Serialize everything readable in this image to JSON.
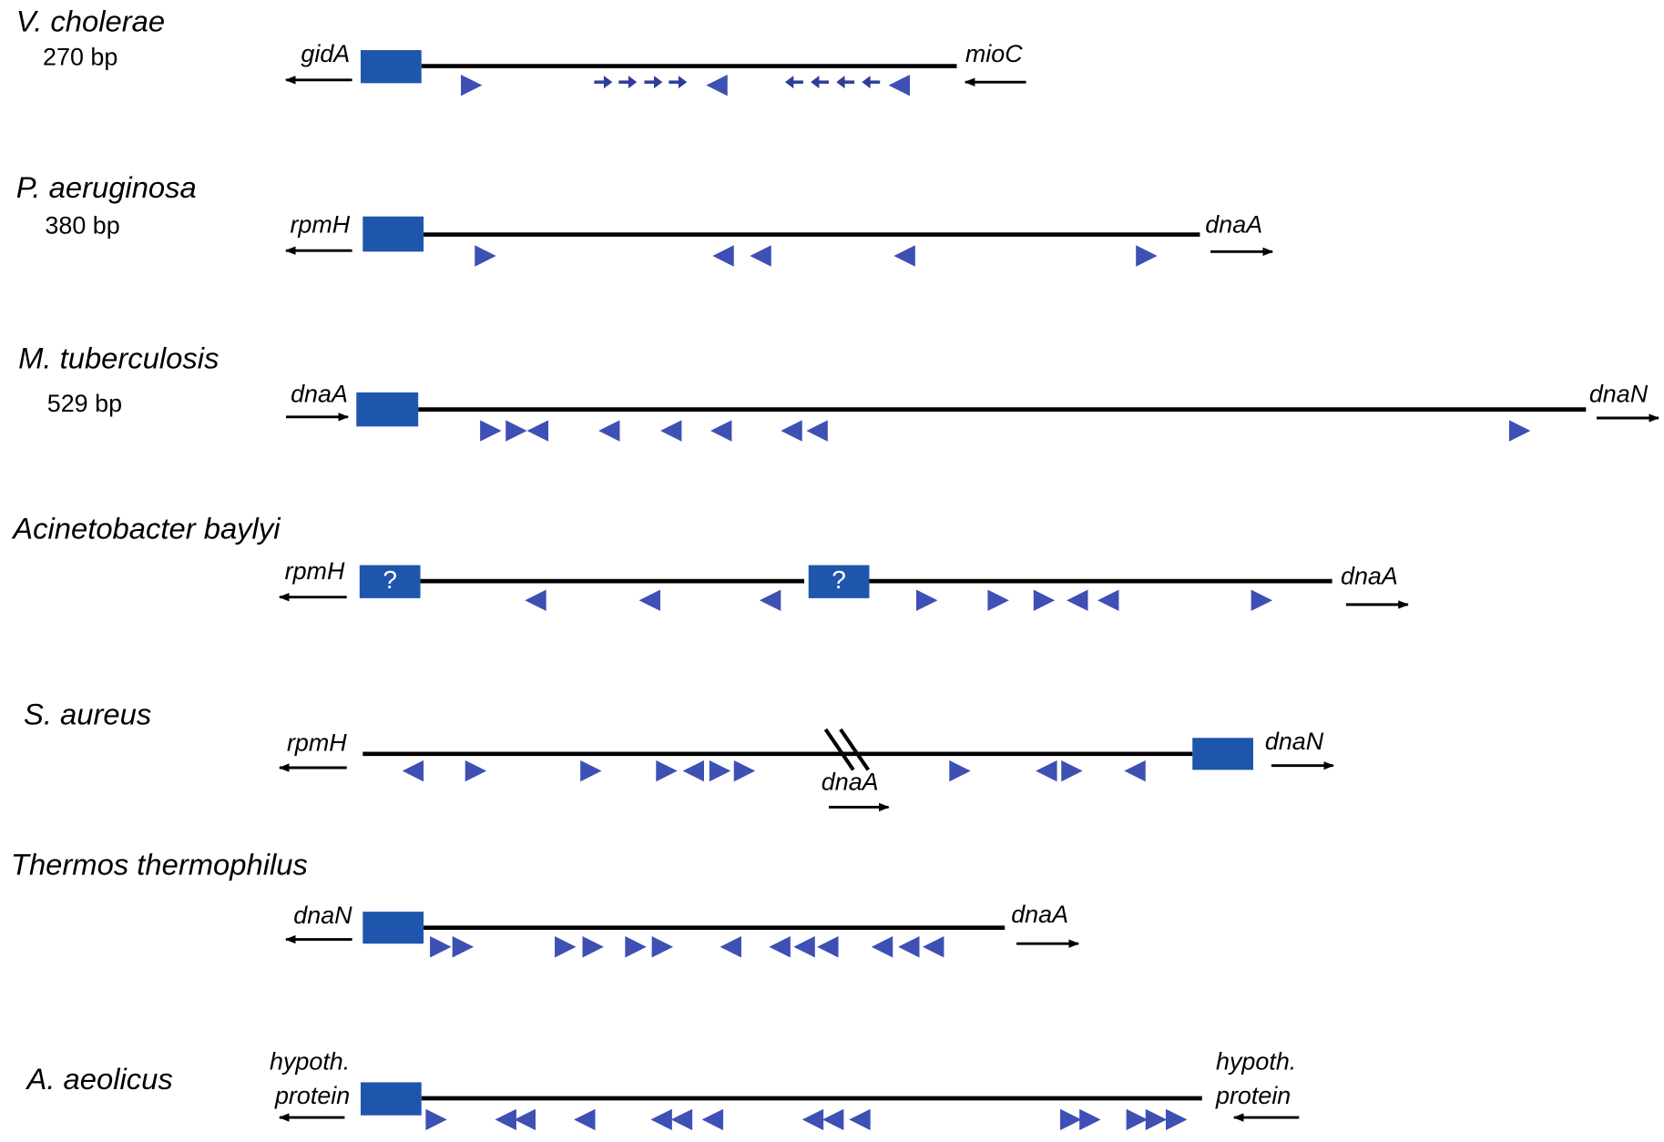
{
  "organisms": [
    {
      "name": "V. cholerae",
      "length": "270 bp",
      "left_gene": "gidA",
      "right_gene": "mioC"
    },
    {
      "name": "P. aeruginosa",
      "length": "380 bp",
      "left_gene": "rpmH",
      "right_gene": "dnaA"
    },
    {
      "name": "M. tuberculosis",
      "length": "529 bp",
      "left_gene": "dnaA",
      "right_gene": "dnaN"
    },
    {
      "name": "Acinetobacter baylyi",
      "left_gene": "rpmH",
      "right_gene": "dnaA",
      "box_labels": [
        "?",
        "?"
      ]
    },
    {
      "name": "S. aureus",
      "left_gene": "rpmH",
      "right_gene": "dnaN",
      "inner_gene": "dnaA"
    },
    {
      "name": "Thermos thermophilus",
      "left_gene": "dnaN",
      "right_gene": "dnaA"
    },
    {
      "name": "A. aeolicus",
      "left_gene": [
        "hypoth.",
        "protein"
      ],
      "right_gene": [
        "hypoth.",
        "protein"
      ]
    }
  ]
}
